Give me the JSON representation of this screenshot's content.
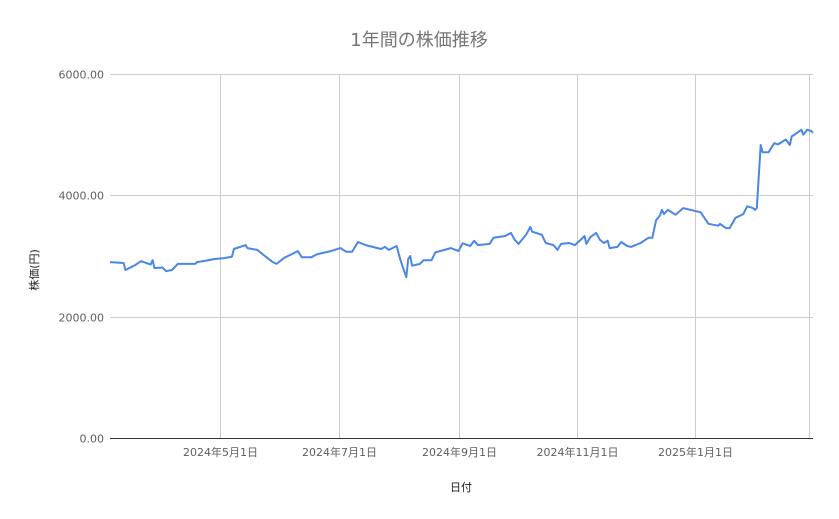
{
  "chart_data": {
    "type": "line",
    "title": "1年間の株価推移",
    "xlabel": "日付",
    "ylabel": "株価(円)",
    "ylim": [
      0,
      6000
    ],
    "xlim": [
      "2024-03-05",
      "2025-03-03"
    ],
    "grid": true,
    "legend": "none",
    "y_ticks": [
      {
        "value": 0,
        "label": "0.00"
      },
      {
        "value": 2000,
        "label": "2000.00"
      },
      {
        "value": 4000,
        "label": "4000.00"
      },
      {
        "value": 6000,
        "label": "6000.00"
      }
    ],
    "x_ticks": [
      {
        "date": "2024-05-01",
        "label": "2024年5月1日"
      },
      {
        "date": "2024-07-01",
        "label": "2024年7月1日"
      },
      {
        "date": "2024-09-01",
        "label": "2024年9月1日"
      },
      {
        "date": "2024-11-01",
        "label": "2024年11月1日"
      },
      {
        "date": "2025-01-01",
        "label": "2025年1月1日"
      },
      {
        "date": "2025-03-01",
        "label": ""
      }
    ],
    "series": [
      {
        "color": "#4a86e8",
        "points": [
          [
            "2024-03-05",
            2900
          ],
          [
            "2024-03-12",
            2885
          ],
          [
            "2024-03-13",
            2770
          ],
          [
            "2024-03-18",
            2850
          ],
          [
            "2024-03-21",
            2915
          ],
          [
            "2024-03-26",
            2860
          ],
          [
            "2024-03-27",
            2930
          ],
          [
            "2024-03-28",
            2800
          ],
          [
            "2024-04-01",
            2810
          ],
          [
            "2024-04-03",
            2750
          ],
          [
            "2024-04-06",
            2770
          ],
          [
            "2024-04-09",
            2870
          ],
          [
            "2024-04-18",
            2870
          ],
          [
            "2024-04-19",
            2900
          ],
          [
            "2024-04-23",
            2920
          ],
          [
            "2024-04-28",
            2950
          ],
          [
            "2024-05-03",
            2965
          ],
          [
            "2024-05-07",
            2990
          ],
          [
            "2024-05-08",
            3115
          ],
          [
            "2024-05-14",
            3180
          ],
          [
            "2024-05-15",
            3130
          ],
          [
            "2024-05-20",
            3100
          ],
          [
            "2024-05-24",
            3000
          ],
          [
            "2024-05-28",
            2900
          ],
          [
            "2024-05-30",
            2870
          ],
          [
            "2024-06-03",
            2970
          ],
          [
            "2024-06-10",
            3080
          ],
          [
            "2024-06-12",
            2980
          ],
          [
            "2024-06-17",
            2980
          ],
          [
            "2024-06-20",
            3030
          ],
          [
            "2024-06-27",
            3080
          ],
          [
            "2024-07-02",
            3130
          ],
          [
            "2024-07-05",
            3070
          ],
          [
            "2024-07-08",
            3070
          ],
          [
            "2024-07-11",
            3230
          ],
          [
            "2024-07-15",
            3180
          ],
          [
            "2024-07-23",
            3115
          ],
          [
            "2024-07-25",
            3150
          ],
          [
            "2024-07-27",
            3100
          ],
          [
            "2024-07-31",
            3165
          ],
          [
            "2024-08-02",
            2930
          ],
          [
            "2024-08-05",
            2650
          ],
          [
            "2024-08-06",
            2950
          ],
          [
            "2024-08-07",
            3000
          ],
          [
            "2024-08-08",
            2840
          ],
          [
            "2024-08-12",
            2870
          ],
          [
            "2024-08-14",
            2930
          ],
          [
            "2024-08-18",
            2930
          ],
          [
            "2024-08-20",
            3060
          ],
          [
            "2024-08-28",
            3130
          ],
          [
            "2024-09-01",
            3080
          ],
          [
            "2024-09-03",
            3210
          ],
          [
            "2024-09-07",
            3165
          ],
          [
            "2024-09-09",
            3250
          ],
          [
            "2024-09-11",
            3180
          ],
          [
            "2024-09-17",
            3200
          ],
          [
            "2024-09-19",
            3300
          ],
          [
            "2024-09-25",
            3330
          ],
          [
            "2024-09-28",
            3380
          ],
          [
            "2024-09-30",
            3265
          ],
          [
            "2024-10-02",
            3200
          ],
          [
            "2024-10-06",
            3360
          ],
          [
            "2024-10-08",
            3480
          ],
          [
            "2024-10-09",
            3400
          ],
          [
            "2024-10-14",
            3350
          ],
          [
            "2024-10-16",
            3215
          ],
          [
            "2024-10-20",
            3180
          ],
          [
            "2024-10-22",
            3100
          ],
          [
            "2024-10-24",
            3200
          ],
          [
            "2024-10-28",
            3215
          ],
          [
            "2024-10-31",
            3180
          ],
          [
            "2024-11-03",
            3265
          ],
          [
            "2024-11-05",
            3330
          ],
          [
            "2024-11-06",
            3200
          ],
          [
            "2024-11-08",
            3310
          ],
          [
            "2024-11-11",
            3380
          ],
          [
            "2024-11-13",
            3265
          ],
          [
            "2024-11-15",
            3215
          ],
          [
            "2024-11-17",
            3250
          ],
          [
            "2024-11-18",
            3130
          ],
          [
            "2024-11-22",
            3150
          ],
          [
            "2024-11-24",
            3230
          ],
          [
            "2024-11-27",
            3165
          ],
          [
            "2024-11-29",
            3150
          ],
          [
            "2024-12-04",
            3215
          ],
          [
            "2024-12-08",
            3300
          ],
          [
            "2024-12-10",
            3300
          ],
          [
            "2024-12-12",
            3590
          ],
          [
            "2024-12-14",
            3670
          ],
          [
            "2024-12-15",
            3760
          ],
          [
            "2024-12-16",
            3690
          ],
          [
            "2024-12-18",
            3760
          ],
          [
            "2024-12-22",
            3680
          ],
          [
            "2024-12-26",
            3790
          ],
          [
            "2025-01-04",
            3720
          ],
          [
            "2025-01-08",
            3530
          ],
          [
            "2025-01-13",
            3500
          ],
          [
            "2025-01-14",
            3530
          ],
          [
            "2025-01-17",
            3460
          ],
          [
            "2025-01-19",
            3460
          ],
          [
            "2025-01-22",
            3630
          ],
          [
            "2025-01-26",
            3690
          ],
          [
            "2025-01-28",
            3820
          ],
          [
            "2025-01-31",
            3790
          ],
          [
            "2025-02-01",
            3760
          ],
          [
            "2025-02-02",
            3790
          ],
          [
            "2025-02-04",
            4830
          ],
          [
            "2025-02-05",
            4710
          ],
          [
            "2025-02-08",
            4710
          ],
          [
            "2025-02-11",
            4860
          ],
          [
            "2025-02-13",
            4840
          ],
          [
            "2025-02-17",
            4920
          ],
          [
            "2025-02-19",
            4830
          ],
          [
            "2025-02-20",
            4970
          ],
          [
            "2025-02-25",
            5080
          ],
          [
            "2025-02-26",
            5000
          ],
          [
            "2025-02-28",
            5080
          ],
          [
            "2025-03-02",
            5060
          ],
          [
            "2025-03-03",
            5030
          ]
        ]
      }
    ]
  }
}
